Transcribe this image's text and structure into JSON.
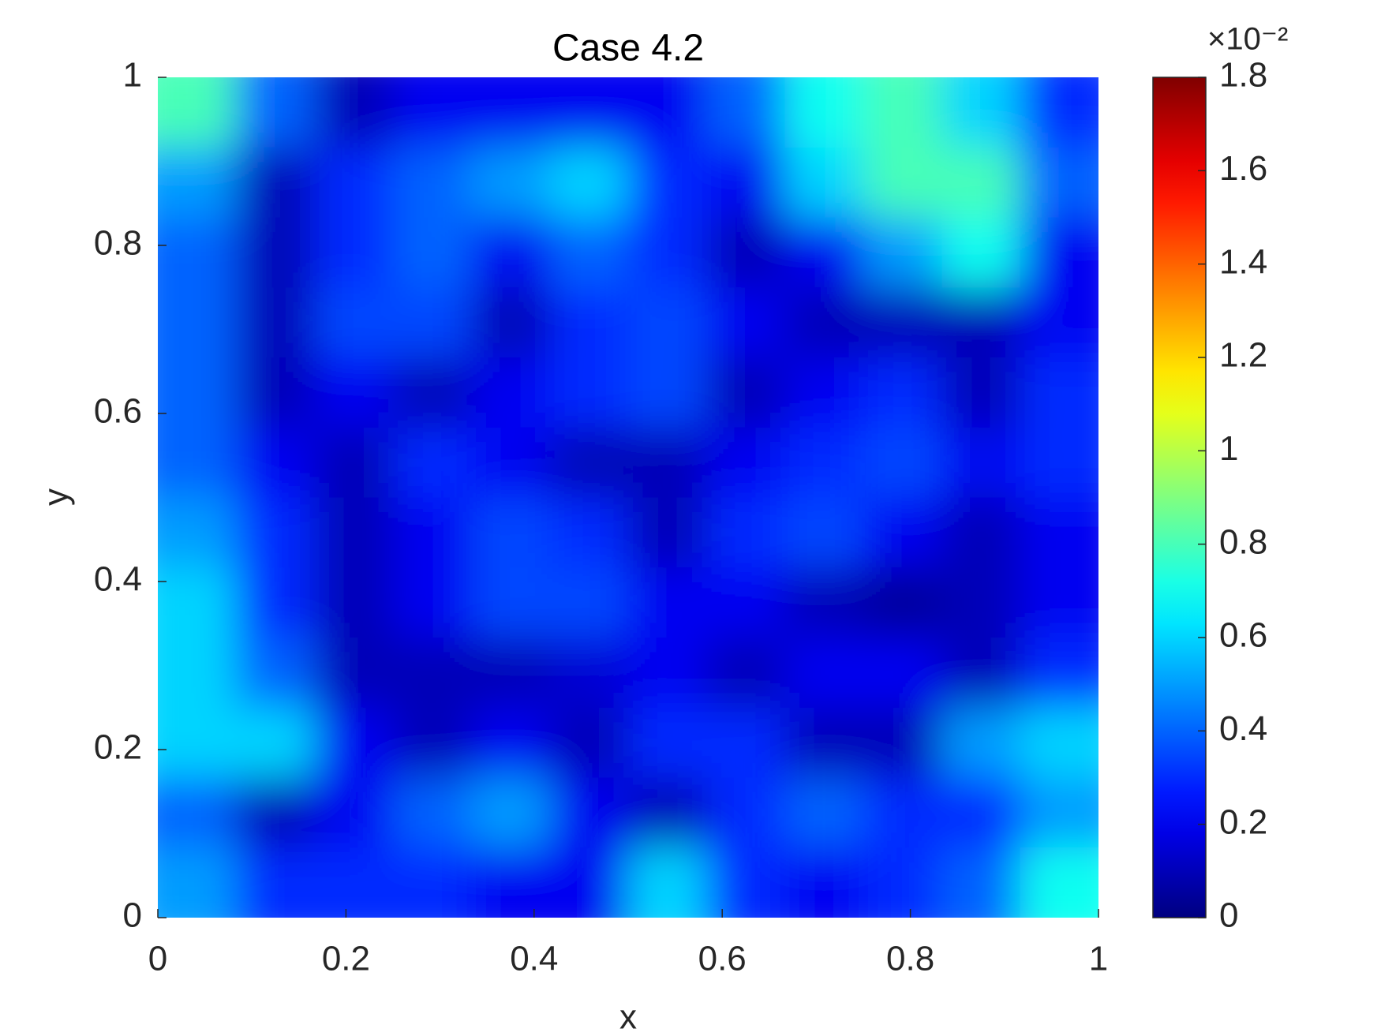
{
  "chart_data": {
    "type": "heatmap",
    "title": "Case 4.2",
    "x_label": "x",
    "y_label": "y",
    "xlim": [
      0,
      1
    ],
    "ylim": [
      0,
      1
    ],
    "xticks": [
      0,
      0.2,
      0.4,
      0.6,
      0.8,
      1
    ],
    "yticks": [
      0,
      0.2,
      0.4,
      0.6,
      0.8,
      1
    ],
    "colormap": "jet",
    "clim": [
      0,
      1.8
    ],
    "cticks": [
      0,
      0.2,
      0.4,
      0.6,
      0.8,
      1,
      1.2,
      1.4,
      1.6,
      1.8
    ],
    "color_scale_label": "×10⁻²",
    "z": [
      [
        0.8,
        0.4,
        0.1,
        0.2,
        0.2,
        0.2,
        0.2,
        0.4,
        0.7,
        0.8,
        0.6,
        0.3
      ],
      [
        0.5,
        0.1,
        0.3,
        0.4,
        0.5,
        0.6,
        0.3,
        0.2,
        0.6,
        0.8,
        0.8,
        0.4
      ],
      [
        0.4,
        0.1,
        0.3,
        0.4,
        0.2,
        0.4,
        0.3,
        0.1,
        0.2,
        0.5,
        0.7,
        0.2
      ],
      [
        0.4,
        0.1,
        0.35,
        0.35,
        0.1,
        0.3,
        0.35,
        0.2,
        0.1,
        0.1,
        0.1,
        0.2
      ],
      [
        0.4,
        0.1,
        0.2,
        0.1,
        0.2,
        0.3,
        0.35,
        0.1,
        0.2,
        0.3,
        0.1,
        0.3
      ],
      [
        0.4,
        0.2,
        0.1,
        0.3,
        0.2,
        0.1,
        0.1,
        0.2,
        0.3,
        0.35,
        0.2,
        0.3
      ],
      [
        0.5,
        0.3,
        0.1,
        0.2,
        0.35,
        0.3,
        0.1,
        0.3,
        0.35,
        0.2,
        0.1,
        0.2
      ],
      [
        0.6,
        0.3,
        0.1,
        0.2,
        0.35,
        0.35,
        0.2,
        0.2,
        0.1,
        0.05,
        0.1,
        0.2
      ],
      [
        0.6,
        0.4,
        0.1,
        0.1,
        0.1,
        0.15,
        0.2,
        0.1,
        0.2,
        0.2,
        0.1,
        0.3
      ],
      [
        0.6,
        0.6,
        0.2,
        0.1,
        0.2,
        0.1,
        0.3,
        0.3,
        0.1,
        0.1,
        0.5,
        0.6
      ],
      [
        0.4,
        0.1,
        0.2,
        0.4,
        0.5,
        0.2,
        0.1,
        0.3,
        0.4,
        0.3,
        0.3,
        0.5
      ],
      [
        0.5,
        0.3,
        0.3,
        0.3,
        0.2,
        0.2,
        0.6,
        0.3,
        0.2,
        0.3,
        0.4,
        0.7
      ]
    ]
  }
}
